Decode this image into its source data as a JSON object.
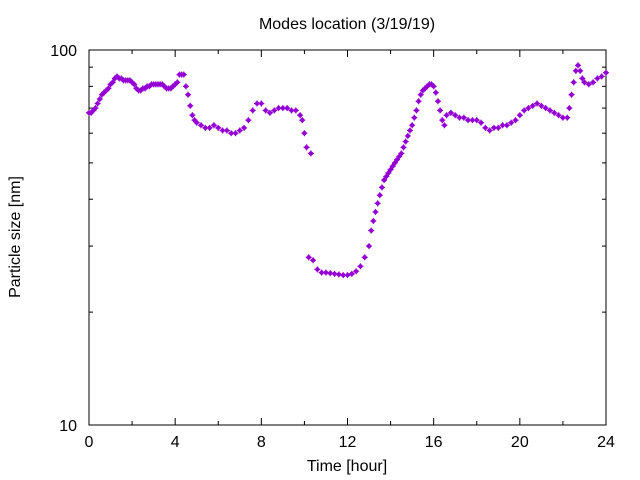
{
  "chart_data": {
    "type": "scatter",
    "title": "Modes location (3/19/19)",
    "xlabel": "Time [hour]",
    "ylabel": "Particle size [nm]",
    "xlim": [
      0,
      24
    ],
    "ylim": [
      10,
      100
    ],
    "yscale": "log",
    "xticks": [
      "0",
      "4",
      "8",
      "12",
      "16",
      "20",
      "24"
    ],
    "yticks": [
      "10",
      "100"
    ],
    "grid": false,
    "marker_color": "#9400D3",
    "series": [
      {
        "points": [
          [
            0.0,
            68
          ],
          [
            0.1,
            68
          ],
          [
            0.2,
            69
          ],
          [
            0.3,
            70
          ],
          [
            0.4,
            72
          ],
          [
            0.5,
            74
          ],
          [
            0.6,
            76
          ],
          [
            0.7,
            77
          ],
          [
            0.8,
            78
          ],
          [
            0.9,
            79
          ],
          [
            1.0,
            81
          ],
          [
            1.1,
            82
          ],
          [
            1.2,
            84
          ],
          [
            1.3,
            85
          ],
          [
            1.4,
            84
          ],
          [
            1.5,
            84
          ],
          [
            1.6,
            83
          ],
          [
            1.7,
            83
          ],
          [
            1.8,
            83
          ],
          [
            1.9,
            83
          ],
          [
            2.0,
            82
          ],
          [
            2.1,
            81
          ],
          [
            2.2,
            79
          ],
          [
            2.3,
            78
          ],
          [
            2.4,
            78
          ],
          [
            2.5,
            79
          ],
          [
            2.6,
            79
          ],
          [
            2.7,
            80
          ],
          [
            2.8,
            80
          ],
          [
            2.9,
            81
          ],
          [
            3.0,
            81
          ],
          [
            3.1,
            81
          ],
          [
            3.2,
            81
          ],
          [
            3.3,
            81
          ],
          [
            3.4,
            81
          ],
          [
            3.5,
            80
          ],
          [
            3.6,
            79
          ],
          [
            3.7,
            79
          ],
          [
            3.8,
            79
          ],
          [
            3.9,
            80
          ],
          [
            4.0,
            81
          ],
          [
            4.1,
            82
          ],
          [
            4.2,
            86
          ],
          [
            4.3,
            86
          ],
          [
            4.4,
            86
          ],
          [
            4.5,
            80
          ],
          [
            4.6,
            76
          ],
          [
            4.7,
            71
          ],
          [
            4.8,
            67
          ],
          [
            4.9,
            65
          ],
          [
            5.0,
            64
          ],
          [
            5.2,
            63
          ],
          [
            5.4,
            62
          ],
          [
            5.6,
            62
          ],
          [
            5.8,
            63
          ],
          [
            6.0,
            62
          ],
          [
            6.2,
            61
          ],
          [
            6.4,
            61
          ],
          [
            6.6,
            60
          ],
          [
            6.8,
            60
          ],
          [
            7.0,
            61
          ],
          [
            7.2,
            62
          ],
          [
            7.4,
            65
          ],
          [
            7.6,
            69
          ],
          [
            7.8,
            72
          ],
          [
            8.0,
            72
          ],
          [
            8.2,
            69
          ],
          [
            8.4,
            68
          ],
          [
            8.6,
            69
          ],
          [
            8.8,
            70
          ],
          [
            9.0,
            70
          ],
          [
            9.2,
            70
          ],
          [
            9.4,
            69
          ],
          [
            9.6,
            69
          ],
          [
            9.8,
            67
          ],
          [
            9.9,
            65
          ],
          [
            10.0,
            60
          ],
          [
            10.1,
            55
          ],
          [
            10.3,
            53
          ],
          [
            10.2,
            28
          ],
          [
            10.4,
            27.5
          ],
          [
            10.6,
            26
          ],
          [
            10.8,
            25.5
          ],
          [
            11.0,
            25.5
          ],
          [
            11.2,
            25.4
          ],
          [
            11.4,
            25.3
          ],
          [
            11.6,
            25.2
          ],
          [
            11.8,
            25.1
          ],
          [
            12.0,
            25.1
          ],
          [
            12.2,
            25.3
          ],
          [
            12.4,
            25.7
          ],
          [
            12.6,
            26.5
          ],
          [
            12.8,
            28
          ],
          [
            13.0,
            30
          ],
          [
            13.1,
            33
          ],
          [
            13.2,
            35
          ],
          [
            13.3,
            37
          ],
          [
            13.4,
            39
          ],
          [
            13.5,
            41
          ],
          [
            13.6,
            43
          ],
          [
            13.7,
            45
          ],
          [
            13.8,
            46
          ],
          [
            13.9,
            47
          ],
          [
            14.0,
            48
          ],
          [
            14.1,
            49
          ],
          [
            14.2,
            50
          ],
          [
            14.3,
            51
          ],
          [
            14.4,
            52
          ],
          [
            14.5,
            53
          ],
          [
            14.6,
            55
          ],
          [
            14.7,
            57
          ],
          [
            14.8,
            59
          ],
          [
            14.9,
            61
          ],
          [
            15.0,
            63
          ],
          [
            15.1,
            66
          ],
          [
            15.2,
            69
          ],
          [
            15.3,
            73
          ],
          [
            15.4,
            76
          ],
          [
            15.5,
            78
          ],
          [
            15.6,
            79
          ],
          [
            15.7,
            80
          ],
          [
            15.8,
            81
          ],
          [
            15.9,
            81
          ],
          [
            16.0,
            80
          ],
          [
            16.1,
            77
          ],
          [
            16.2,
            73
          ],
          [
            16.3,
            69
          ],
          [
            16.4,
            65
          ],
          [
            16.5,
            63
          ],
          [
            16.6,
            67
          ],
          [
            16.8,
            68
          ],
          [
            17.0,
            67
          ],
          [
            17.2,
            66
          ],
          [
            17.4,
            66
          ],
          [
            17.6,
            65
          ],
          [
            17.8,
            65
          ],
          [
            18.0,
            65
          ],
          [
            18.2,
            64
          ],
          [
            18.4,
            62
          ],
          [
            18.6,
            61
          ],
          [
            18.8,
            62
          ],
          [
            19.0,
            62
          ],
          [
            19.2,
            63
          ],
          [
            19.4,
            63
          ],
          [
            19.6,
            64
          ],
          [
            19.8,
            65
          ],
          [
            20.0,
            67
          ],
          [
            20.2,
            69
          ],
          [
            20.4,
            70
          ],
          [
            20.6,
            71
          ],
          [
            20.8,
            72
          ],
          [
            21.0,
            71
          ],
          [
            21.2,
            70
          ],
          [
            21.4,
            69
          ],
          [
            21.6,
            68
          ],
          [
            21.8,
            67
          ],
          [
            22.0,
            66
          ],
          [
            22.2,
            66
          ],
          [
            22.3,
            70
          ],
          [
            22.4,
            76
          ],
          [
            22.5,
            82
          ],
          [
            22.6,
            88
          ],
          [
            22.7,
            91
          ],
          [
            22.8,
            88
          ],
          [
            22.9,
            84
          ],
          [
            23.0,
            82
          ],
          [
            23.2,
            81
          ],
          [
            23.4,
            82
          ],
          [
            23.6,
            84
          ],
          [
            23.8,
            85
          ],
          [
            24.0,
            87
          ]
        ]
      }
    ]
  }
}
